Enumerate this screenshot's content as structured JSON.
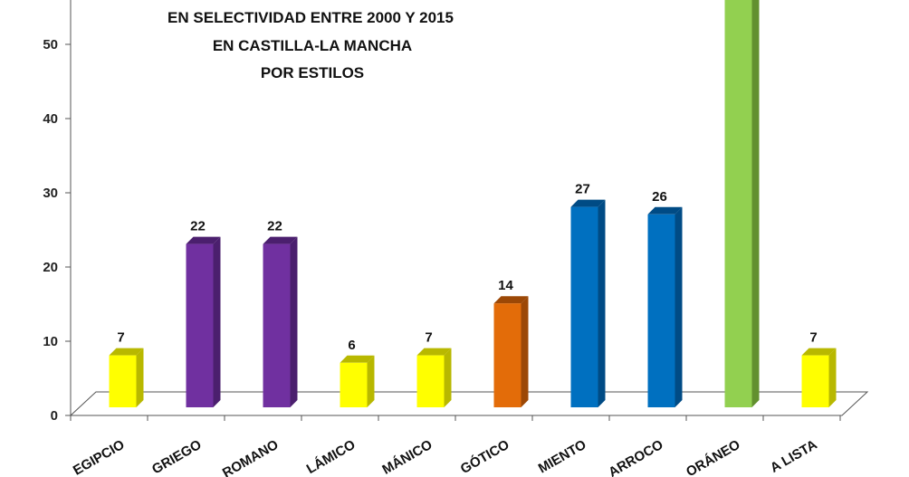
{
  "chart_data": {
    "type": "bar",
    "title_lines": [
      "EN SELECTIVIDAD ENTRE 2000 Y 2015",
      "EN CASTILLA-LA MANCHA",
      "POR ESTILOS"
    ],
    "categories": [
      "EGIPCIO",
      "GRIEGO",
      "ROMANO",
      "ISLÁMICO",
      "ROMÁNICO",
      "GÓTICO",
      "RENACIMIENTO",
      "BARROCO",
      "CONTEMPORÁNEO",
      "FUERA DE LA LISTA"
    ],
    "visible_category_labels": [
      "EGIPCIO",
      "GRIEGO",
      "ROMANO",
      "LÁMICO",
      "MÁNICO",
      "GÓTICO",
      "MIENTO",
      "ARROCO",
      "ORÁNEO",
      "A LISTA"
    ],
    "values": [
      7,
      22,
      22,
      6,
      7,
      14,
      27,
      26,
      58,
      7
    ],
    "data_labels": [
      "7",
      "22",
      "22",
      "6",
      "7",
      "14",
      "27",
      "26",
      "",
      "7"
    ],
    "bar_colors": [
      "#ffff00",
      "#7030a0",
      "#7030a0",
      "#ffff00",
      "#ffff00",
      "#e36c09",
      "#0070c0",
      "#0070c0",
      "#92d050",
      "#ffff00"
    ],
    "bar_side_colors": [
      "#b8b800",
      "#4b1f6e",
      "#4b1f6e",
      "#b8b800",
      "#b8b800",
      "#9c4806",
      "#004b85",
      "#004b85",
      "#62902f",
      "#b8b800"
    ],
    "yticks": [
      0,
      10,
      20,
      30,
      40,
      50
    ],
    "ylim": [
      0,
      56
    ],
    "xlabel": "",
    "ylabel": "",
    "grid": false
  }
}
